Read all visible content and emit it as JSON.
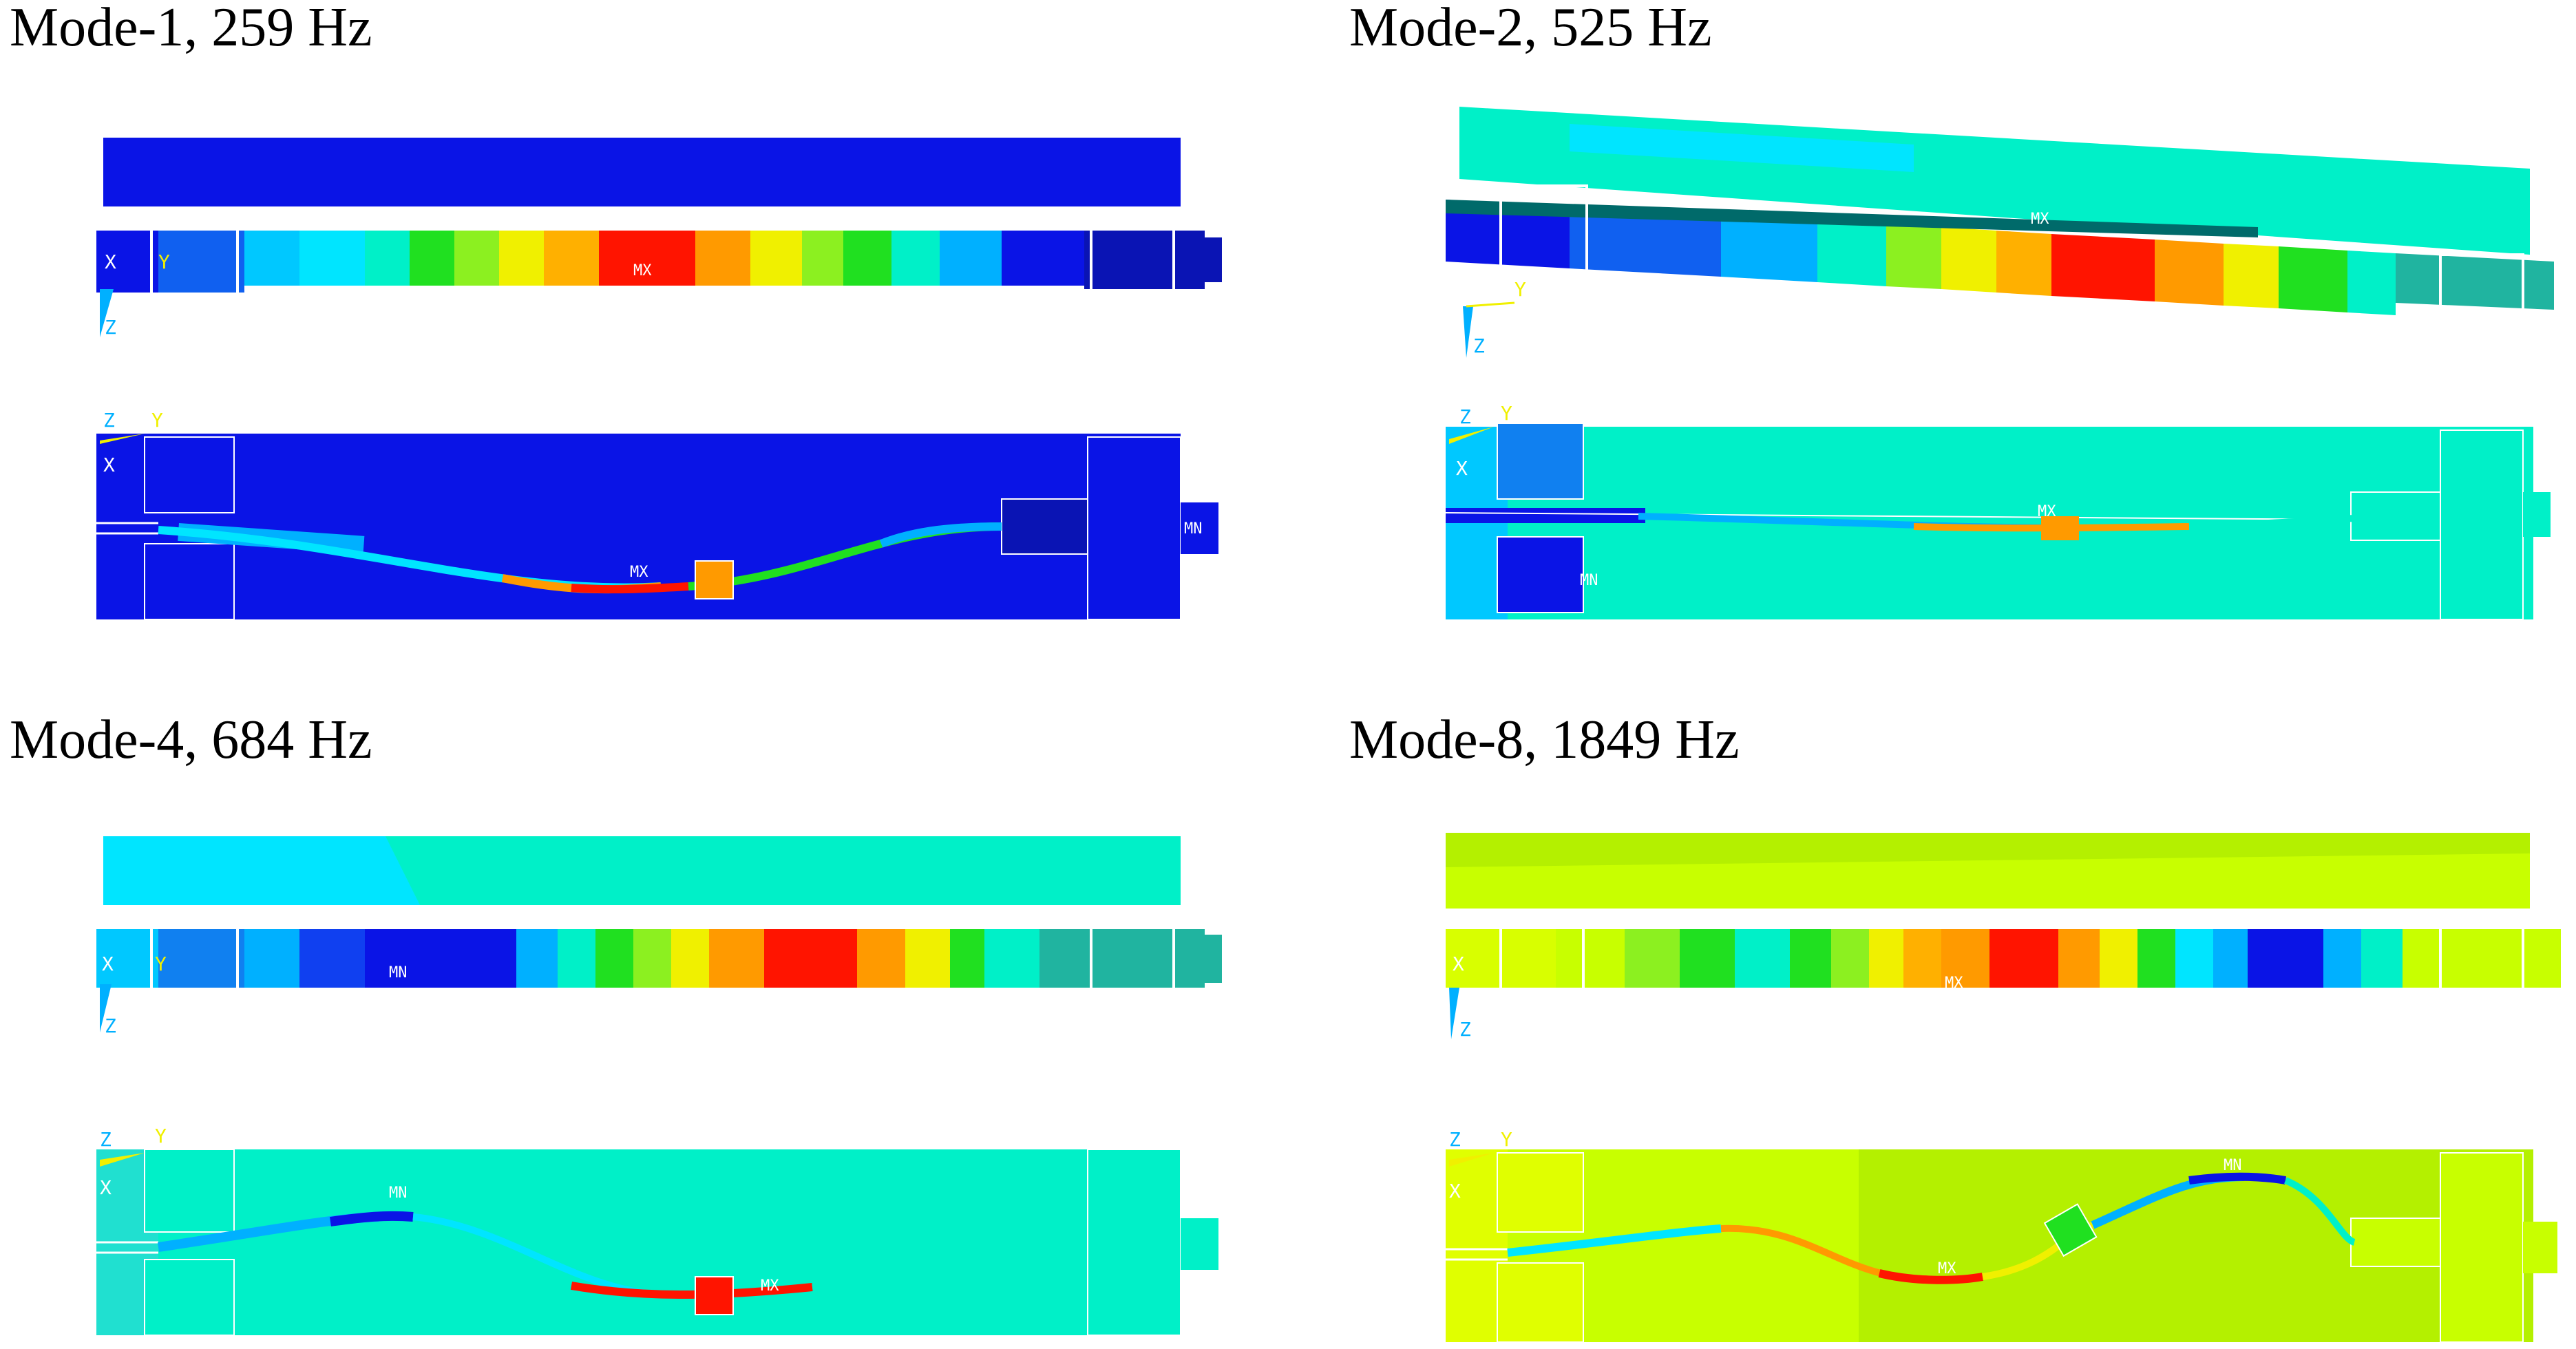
{
  "modes": [
    {
      "title": "Mode-1, 259 Hz",
      "top_view": {
        "labels": [
          "MX"
        ],
        "axes": [
          "X",
          "Y",
          "Z"
        ]
      },
      "side_view": {
        "labels": [
          "MX",
          "MN"
        ],
        "axes": [
          "Z",
          "Y",
          "X"
        ]
      }
    },
    {
      "title": "Mode-2, 525 Hz",
      "top_view": {
        "labels": [
          "MX"
        ],
        "axes": [
          "Y",
          "Z"
        ]
      },
      "side_view": {
        "labels": [
          "MX",
          "MN"
        ],
        "axes": [
          "Z",
          "Y",
          "X"
        ]
      }
    },
    {
      "title": "Mode-4, 684 Hz",
      "top_view": {
        "labels": [
          "MN"
        ],
        "axes": [
          "X",
          "Y",
          "Z"
        ]
      },
      "side_view": {
        "labels": [
          "MN",
          "MX"
        ],
        "axes": [
          "Z",
          "Y",
          "X"
        ]
      }
    },
    {
      "title": "Mode-8, 1849 Hz",
      "top_view": {
        "labels": [
          "MX"
        ],
        "axes": [
          "X",
          "Z"
        ]
      },
      "side_view": {
        "labels": [
          "MN",
          "MX"
        ],
        "axes": [
          "Z",
          "Y",
          "X"
        ]
      }
    }
  ],
  "colors": {
    "blue": "#0a14e6",
    "cyan": "#00e5ff",
    "teal": "#00f0c8",
    "green": "#20e020",
    "yellow": "#f0f000",
    "orange": "#ff9a00",
    "red": "#ff1400",
    "lime": "#c8ff00"
  }
}
